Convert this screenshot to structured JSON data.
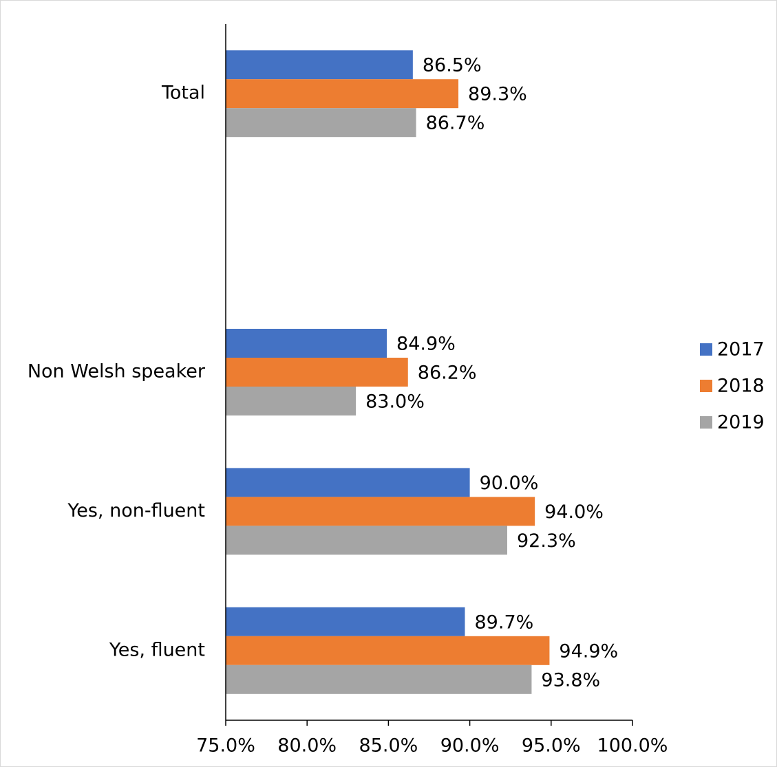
{
  "chart_data": {
    "type": "bar",
    "orientation": "horizontal",
    "categories": [
      "Total",
      null,
      "Non Welsh speaker",
      "Yes, non-fluent",
      "Yes, fluent"
    ],
    "series": [
      {
        "name": "2017",
        "color": "#4472c4",
        "values": [
          86.5,
          null,
          84.9,
          90.0,
          89.7
        ],
        "value_labels": [
          "86.5%",
          null,
          "84.9%",
          "90.0%",
          "89.7%"
        ]
      },
      {
        "name": "2018",
        "color": "#ed7d31",
        "values": [
          89.3,
          null,
          86.2,
          94.0,
          94.9
        ],
        "value_labels": [
          "89.3%",
          null,
          "86.2%",
          "94.0%",
          "94.9%"
        ]
      },
      {
        "name": "2019",
        "color": "#a5a5a5",
        "values": [
          86.7,
          null,
          83.0,
          92.3,
          93.8
        ],
        "value_labels": [
          "86.7%",
          null,
          "83.0%",
          "92.3%",
          "93.8%"
        ]
      }
    ],
    "xlim": [
      75,
      100
    ],
    "xticks": [
      {
        "value": 75,
        "label": "75.0%"
      },
      {
        "value": 80,
        "label": "80.0%"
      },
      {
        "value": 85,
        "label": "85.0%"
      },
      {
        "value": 90,
        "label": "90.0%"
      },
      {
        "value": 95,
        "label": "95.0%"
      },
      {
        "value": 100,
        "label": "100.0%"
      }
    ],
    "legend": "right"
  }
}
